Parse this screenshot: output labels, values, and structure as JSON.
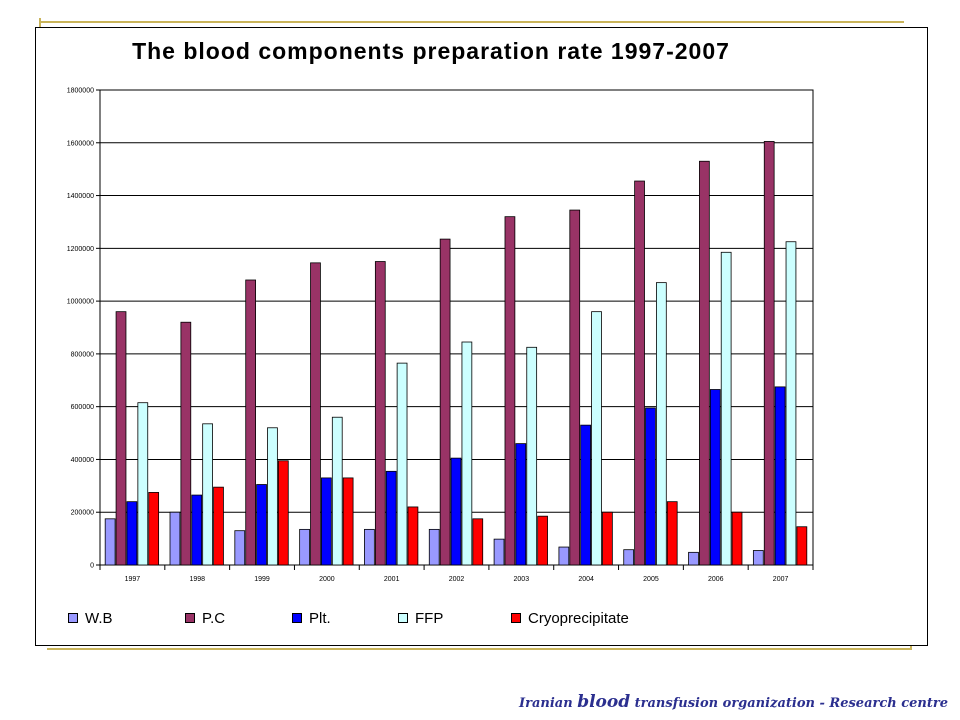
{
  "chart_data": {
    "type": "bar",
    "title": "The blood components preparation rate 1997-2007",
    "xlabel": "",
    "ylabel": "",
    "ylim": [
      0,
      1800000
    ],
    "yticks": [
      0,
      200000,
      400000,
      600000,
      800000,
      1000000,
      1200000,
      1400000,
      1600000,
      1800000
    ],
    "grid": true,
    "legend_position": "bottom",
    "categories": [
      "1997",
      "1998",
      "1999",
      "2000",
      "2001",
      "2002",
      "2003",
      "2004",
      "2005",
      "2006",
      "2007"
    ],
    "series": [
      {
        "name": "W.B",
        "color": "#9999ff",
        "values": [
          175000,
          200000,
          130000,
          135000,
          135000,
          135000,
          98000,
          68000,
          58000,
          48000,
          55000
        ]
      },
      {
        "name": "P.C",
        "color": "#993366",
        "values": [
          960000,
          920000,
          1080000,
          1145000,
          1150000,
          1235000,
          1320000,
          1345000,
          1455000,
          1530000,
          1605000
        ]
      },
      {
        "name": "Plt.",
        "color": "#0000ff",
        "values": [
          240000,
          265000,
          305000,
          330000,
          355000,
          405000,
          460000,
          530000,
          595000,
          665000,
          675000
        ]
      },
      {
        "name": "FFP",
        "color": "#ccffff",
        "values": [
          615000,
          535000,
          520000,
          560000,
          765000,
          845000,
          825000,
          960000,
          1070000,
          1185000,
          1225000
        ]
      },
      {
        "name": "Cryoprecipitate",
        "color": "#ff0000",
        "values": [
          275000,
          295000,
          395000,
          330000,
          220000,
          175000,
          185000,
          200000,
          240000,
          200000,
          145000
        ]
      }
    ]
  },
  "footer": {
    "part1": "Iranian ",
    "part2": "blood",
    "part3": " transfusion organization",
    "part4": " - Research centre"
  }
}
